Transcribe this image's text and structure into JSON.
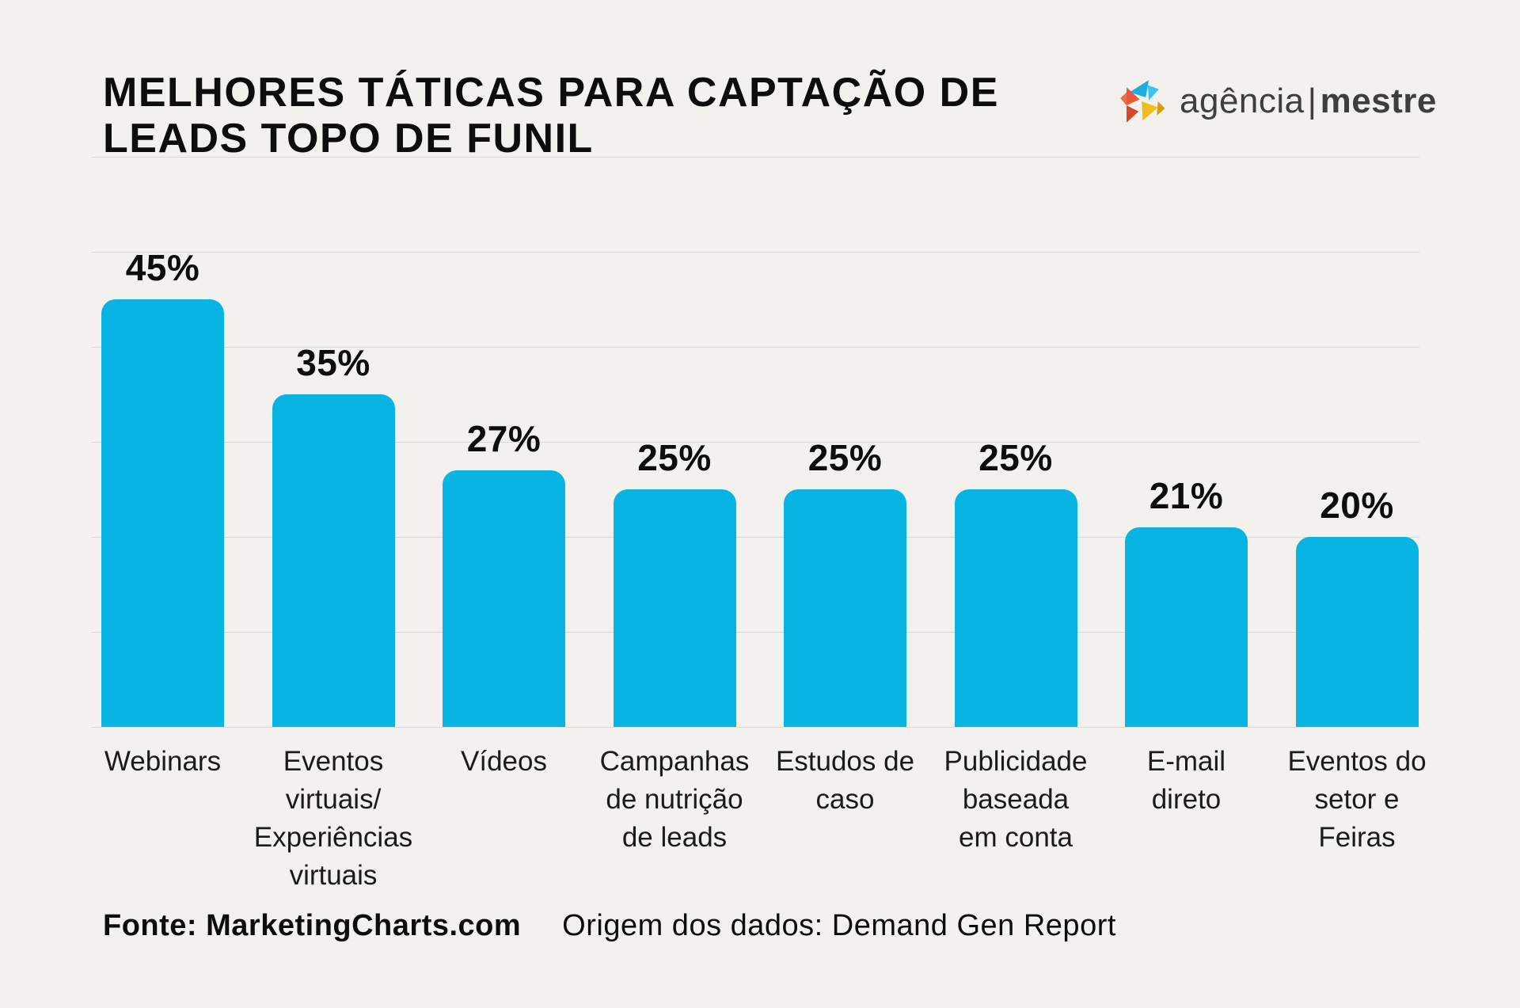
{
  "page": {
    "background_color": "#f2f1ee"
  },
  "header": {
    "title": "MELHORES TÁTICAS PARA CAPTAÇÃO DE LEADS TOPO DE FUNIL",
    "logo": {
      "name_light": "agência",
      "separator": "|",
      "name_bold": "mestre",
      "colors": {
        "cyan": "#1fadde",
        "cyan_light": "#38c4ee",
        "orange": "#e85a39",
        "orange_dark": "#d14a2b",
        "orange_light": "#ef6d47",
        "yellow": "#f0bd1d",
        "yellow_dark": "#d89b14",
        "text": "#3e3e3e"
      }
    }
  },
  "chart_data": {
    "type": "bar",
    "title": "MELHORES TÁTICAS PARA CAPTAÇÃO DE LEADS TOPO DE FUNIL",
    "categories": [
      "Webinars",
      "Eventos\nvirtuais/\nExperiências\nvirtuais",
      "Vídeos",
      "Campanhas\nde nutrição\nde leads",
      "Estudos de\ncaso",
      "Publicidade\nbaseada\nem conta",
      "E-mail\ndireto",
      "Eventos do\nsetor e\nFeiras"
    ],
    "values": [
      45,
      35,
      27,
      25,
      25,
      25,
      21,
      20
    ],
    "value_labels": [
      "45%",
      "35%",
      "27%",
      "25%",
      "25%",
      "25%",
      "21%",
      "20%"
    ],
    "unit": "%",
    "xlabel": "",
    "ylabel": "",
    "ylim": [
      0,
      60
    ],
    "grid_step": 10,
    "grid": "horizontal",
    "legend": "none",
    "bar_color": "#07b4e2",
    "gridline_color": "#dad9d5",
    "value_label_color": "#0d0d0d",
    "category_label_color": "#1b1b1b"
  },
  "footer": {
    "source": "Fonte: MarketingCharts.com",
    "origin": "Origem dos dados: Demand Gen Report"
  }
}
